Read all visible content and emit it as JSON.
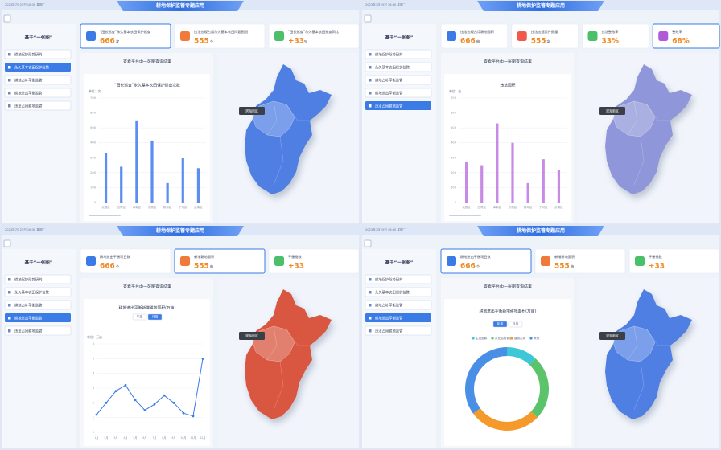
{
  "header": {
    "title": "耕地保护监管专题应用",
    "datetime": "2023年7月25日 16:30 星期二"
  },
  "sidebar": {
    "title": "基于“一张图”",
    "items": [
      "耕地保护形势研判",
      "永久基本农田保护监管",
      "耕地占补平衡监管",
      "耕地进出平衡监管",
      "违法占用耕地监管"
    ]
  },
  "panels": [
    {
      "active_item": 1,
      "selected_card": 0,
      "map_color": "#4f7fe3",
      "map_tooltip": "滨海新区",
      "section_title": "查看平台中一张图查询结果",
      "cards": [
        {
          "label": "“田长巡查”永久基本农田保护巡查",
          "value": "666",
          "unit": "次",
          "color": "#3a7be6"
        },
        {
          "label": "违法违规占用永久基本农田问题图斑",
          "value": "555",
          "unit": "个",
          "color": "#f07a3a"
        },
        {
          "label": "“田长巡查”永久基本农田巡查同比",
          "value": "+33",
          "unit": "%",
          "color": "#4cbf6a"
        }
      ],
      "chart": {
        "type": "bar",
        "title": "“田长巡查”永久基本农田保护巡查次数",
        "y_label": "单位：次",
        "categories": [
          "北辰区",
          "西青区",
          "津南区",
          "东丽区",
          "静海区",
          "宁河区",
          "武清区"
        ],
        "values": [
          330,
          240,
          550,
          415,
          130,
          300,
          230
        ],
        "color": "#5b8ef0",
        "ylim": [
          0,
          700
        ],
        "yticks": [
          0,
          100,
          200,
          300,
          400,
          500,
          600,
          700
        ]
      }
    },
    {
      "active_item": 4,
      "selected_card": 3,
      "map_color": "#8f96d9",
      "map_tooltip": "滨海新区",
      "section_title": "查看平台中一张图查询结果",
      "cards": [
        {
          "label": "违法违规占用耕地面积",
          "value": "666",
          "unit": "亩",
          "color": "#3a7be6"
        },
        {
          "label": "违法违规案件数量",
          "value": "555",
          "unit": "宗",
          "color": "#f05a4a"
        },
        {
          "label": "违法整改率",
          "value": "33%",
          "unit": "",
          "color": "#4cbf6a"
        },
        {
          "label": "整改率",
          "value": "68%",
          "unit": "",
          "color": "#b05ad8"
        }
      ],
      "chart": {
        "type": "bar",
        "title": "违法面积",
        "y_label": "单位：亩",
        "categories": [
          "北辰区",
          "西青区",
          "津南区",
          "东丽区",
          "静海区",
          "宁河区",
          "武清区"
        ],
        "values": [
          270,
          250,
          530,
          400,
          130,
          290,
          220
        ],
        "color": "#c78be6",
        "ylim": [
          0,
          700
        ],
        "yticks": [
          0,
          100,
          200,
          300,
          400,
          500,
          600,
          700
        ]
      }
    },
    {
      "active_item": 3,
      "selected_card": 1,
      "map_color": "#d9573f",
      "map_tooltip": "滨海新区",
      "section_title": "查看平台中一张图查询结果",
      "cards": [
        {
          "label": "耕地进出平衡项目数",
          "value": "666",
          "unit": "个",
          "color": "#3a7be6"
        },
        {
          "label": "新增耕地面积",
          "value": "555",
          "unit": "亩",
          "color": "#f07a3a"
        },
        {
          "label": "平衡指数",
          "value": "+33",
          "unit": "",
          "color": "#4cbf6a"
        }
      ],
      "chart": {
        "type": "line",
        "title": "耕地进出平衡新增耕地面积(万亩)",
        "y_label": "单位：万亩",
        "toggle": [
          "年度",
          "月度"
        ],
        "toggle_active": 1,
        "categories": [
          "1月",
          "2月",
          "3月",
          "4月",
          "5月",
          "6月",
          "7月",
          "8月",
          "9月",
          "10月",
          "11月",
          "12月"
        ],
        "values": [
          1.2,
          2.0,
          2.8,
          3.2,
          2.2,
          1.5,
          1.9,
          2.5,
          2.0,
          1.3,
          1.1,
          5.0
        ],
        "color": "#3a7be6",
        "ylim": [
          0,
          6
        ],
        "yticks": [
          0,
          1,
          2,
          3,
          4,
          5,
          6
        ]
      }
    },
    {
      "active_item": 3,
      "selected_card": 0,
      "map_color": "#4f7fe3",
      "map_tooltip": "滨海新区",
      "section_title": "查看平台中一张图查询结果",
      "cards": [
        {
          "label": "耕地进出平衡项目数",
          "value": "666",
          "unit": "个",
          "color": "#3a7be6"
        },
        {
          "label": "新增耕地面积",
          "value": "555",
          "unit": "亩",
          "color": "#f07a3a"
        },
        {
          "label": "平衡指数",
          "value": "+33",
          "unit": "",
          "color": "#4cbf6a"
        }
      ],
      "chart": {
        "type": "pie",
        "title": "耕地进出平衡新增耕地面积(万亩)",
        "toggle": [
          "年度",
          "月度"
        ],
        "toggle_active": 0,
        "categories": [
          "生态退耕",
          "农业结构调整",
          "建设占用",
          "其他"
        ],
        "values": [
          12,
          25,
          28,
          35
        ],
        "colors": [
          "#3ec7d6",
          "#5bc46a",
          "#f59a2a",
          "#4a8fe6"
        ]
      }
    }
  ]
}
